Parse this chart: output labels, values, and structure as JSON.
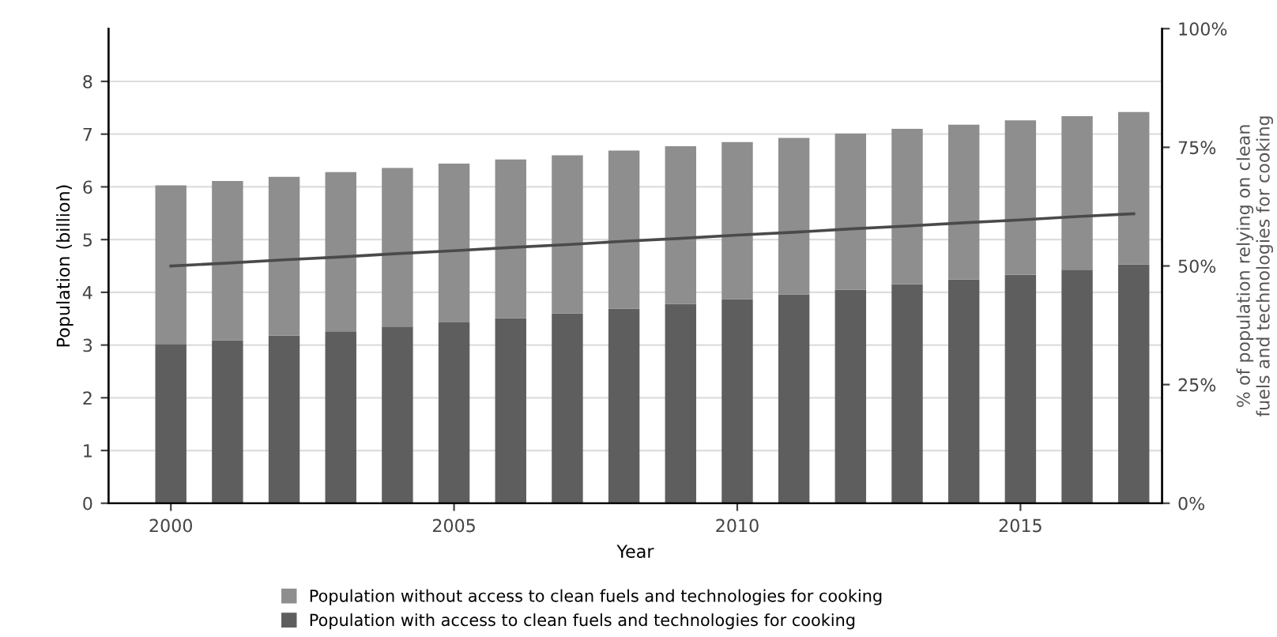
{
  "chart_data": {
    "type": "bar",
    "stacked": true,
    "x": [
      2000,
      2001,
      2002,
      2003,
      2004,
      2005,
      2006,
      2007,
      2008,
      2009,
      2010,
      2011,
      2012,
      2013,
      2014,
      2015,
      2016,
      2017
    ],
    "series": [
      {
        "name": "Population with access to clean fuels and technologies for cooking",
        "color": "#5e5e5e",
        "values": [
          3.02,
          3.09,
          3.18,
          3.26,
          3.35,
          3.43,
          3.51,
          3.6,
          3.69,
          3.78,
          3.87,
          3.96,
          4.05,
          4.15,
          4.24,
          4.33,
          4.43,
          4.53
        ]
      },
      {
        "name": "Population without access to clean fuels and technologies for cooking",
        "color": "#8e8e8e",
        "values": [
          3.01,
          3.02,
          3.01,
          3.02,
          3.01,
          3.01,
          3.01,
          3.0,
          3.0,
          2.99,
          2.98,
          2.97,
          2.96,
          2.95,
          2.94,
          2.93,
          2.91,
          2.89
        ]
      },
      {
        "type": "line",
        "axis": "y2",
        "color": "#4a4a4a",
        "values": [
          50,
          50.6,
          51.3,
          51.9,
          52.6,
          53.2,
          53.9,
          54.5,
          55.2,
          55.8,
          56.5,
          57.1,
          57.8,
          58.4,
          59.1,
          59.7,
          60.4,
          61.0
        ]
      }
    ],
    "xlabel": "Year",
    "ylabel": "Population (billion)",
    "y2label": "% of population relying on clean fuels and technologies for cooking",
    "xlim": [
      1998.9,
      2017.5
    ],
    "xticks": [
      2000,
      2005,
      2010,
      2015
    ],
    "ylim": [
      0,
      9
    ],
    "yticks": [
      0,
      1,
      2,
      3,
      4,
      5,
      6,
      7,
      8
    ],
    "y2lim": [
      0,
      100
    ],
    "y2ticks": [
      {
        "value": 0,
        "label": "0%"
      },
      {
        "value": 25,
        "label": "25%"
      },
      {
        "value": 50,
        "label": "50%"
      },
      {
        "value": 75,
        "label": "75%"
      },
      {
        "value": 100,
        "label": "100%"
      }
    ],
    "grid": "y",
    "legend": "bottom",
    "marker": "none",
    "line_style": "solid"
  }
}
